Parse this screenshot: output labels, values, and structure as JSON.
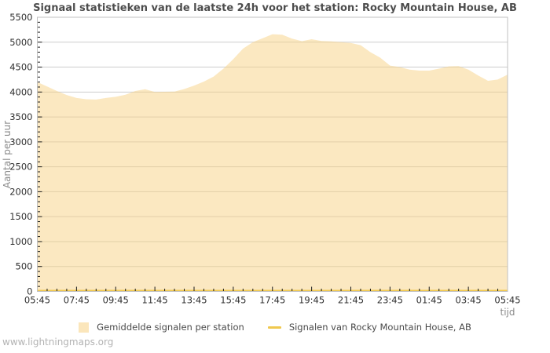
{
  "page": {
    "footer": "www.lightningmaps.org"
  },
  "chart_data": {
    "type": "area",
    "title": "Signaal statistieken van de laatste 24h voor het station: Rocky Mountain House, AB",
    "xlabel": "tijd",
    "ylabel": "Aantal per uur",
    "ylim": [
      0,
      5500
    ],
    "y_tick_step": 500,
    "y_minor_step": 100,
    "grid": "horizontal-only",
    "legend_position": "bottom-center",
    "x_tick_labels": [
      "05:45",
      "07:45",
      "09:45",
      "11:45",
      "13:45",
      "15:45",
      "17:45",
      "19:45",
      "21:45",
      "23:45",
      "01:45",
      "03:45",
      "05:45"
    ],
    "x": [
      "05:45",
      "06:15",
      "06:45",
      "07:15",
      "07:45",
      "08:15",
      "08:45",
      "09:15",
      "09:45",
      "10:15",
      "10:45",
      "11:15",
      "11:45",
      "12:15",
      "12:45",
      "13:15",
      "13:45",
      "14:15",
      "14:45",
      "15:15",
      "15:45",
      "16:15",
      "16:45",
      "17:15",
      "17:45",
      "18:15",
      "18:45",
      "19:15",
      "19:45",
      "20:15",
      "20:45",
      "21:15",
      "21:45",
      "22:15",
      "22:45",
      "23:15",
      "23:45",
      "00:15",
      "00:45",
      "01:15",
      "01:45",
      "02:15",
      "02:45",
      "03:15",
      "03:45",
      "04:15",
      "04:45",
      "05:15",
      "05:45"
    ],
    "series": [
      {
        "name": "Gemiddelde signalen per station",
        "type": "area",
        "color": "#f8d184",
        "fill_opacity": 0.5,
        "values": [
          4200,
          4110,
          4020,
          3940,
          3880,
          3855,
          3850,
          3880,
          3905,
          3945,
          4020,
          4055,
          4000,
          4005,
          4010,
          4060,
          4130,
          4210,
          4310,
          4470,
          4660,
          4870,
          5000,
          5080,
          5160,
          5150,
          5070,
          5020,
          5060,
          5025,
          5015,
          5000,
          4985,
          4940,
          4800,
          4690,
          4530,
          4500,
          4450,
          4430,
          4430,
          4470,
          4515,
          4520,
          4450,
          4330,
          4225,
          4250,
          4350
        ]
      },
      {
        "name": "Signalen van Rocky Mountain House, AB",
        "type": "line",
        "color": "#f0c84e",
        "values": [
          0,
          0,
          0,
          0,
          0,
          0,
          0,
          0,
          0,
          0,
          0,
          0,
          0,
          0,
          0,
          0,
          0,
          0,
          0,
          0,
          0,
          0,
          0,
          0,
          0,
          0,
          0,
          0,
          0,
          0,
          0,
          0,
          0,
          0,
          0,
          0,
          0,
          0,
          0,
          0,
          0,
          0,
          0,
          0,
          0,
          0,
          0,
          0,
          0
        ]
      }
    ],
    "colors": {
      "grid": "#cdcdcd",
      "frame": "#c0c0c0",
      "tick": "#1a1a1a",
      "tick_label": "#303030",
      "title": "#4d4d4d",
      "axis_label": "#8a8a8a",
      "background": "#ffffff"
    }
  }
}
